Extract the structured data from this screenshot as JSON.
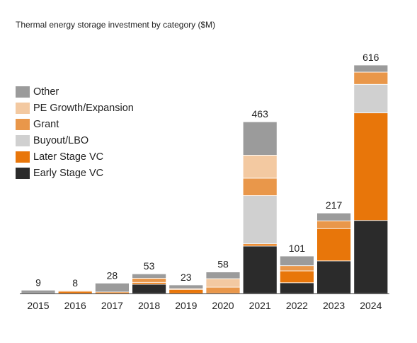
{
  "chart_data": {
    "type": "bar",
    "stacked": true,
    "title": "Thermal energy storage investment by category ($M)",
    "xlabel": "",
    "ylabel": "",
    "ylim": [
      0,
      616
    ],
    "grid": false,
    "legend_position": "left",
    "categories": [
      "2015",
      "2016",
      "2017",
      "2018",
      "2019",
      "2020",
      "2021",
      "2022",
      "2023",
      "2024"
    ],
    "totals": [
      9,
      8,
      28,
      53,
      23,
      58,
      463,
      101,
      217,
      616
    ],
    "series": [
      {
        "name": "Early Stage VC",
        "color": "#2b2b2b",
        "values": [
          0,
          0,
          0,
          25,
          0,
          0,
          128,
          29,
          88,
          197
        ]
      },
      {
        "name": "Later Stage VC",
        "color": "#e8760a",
        "values": [
          0,
          6,
          4,
          5,
          11,
          0,
          6,
          32,
          87,
          290
        ]
      },
      {
        "name": "Buyout/LBO",
        "color": "#d0d0d0",
        "values": [
          0,
          0,
          0,
          0,
          0,
          0,
          130,
          0,
          0,
          77
        ]
      },
      {
        "name": "Grant",
        "color": "#e9974a",
        "values": [
          0,
          2,
          0,
          11,
          2,
          17,
          47,
          14,
          21,
          33
        ]
      },
      {
        "name": "PE Growth/Expansion",
        "color": "#f3c9a1",
        "values": [
          0,
          0,
          0,
          0,
          0,
          23,
          62,
          0,
          0,
          0
        ]
      },
      {
        "name": "Other",
        "color": "#9b9b9b",
        "values": [
          9,
          0,
          24,
          12,
          10,
          18,
          90,
          26,
          21,
          19
        ]
      }
    ]
  },
  "legend_order": [
    "Other",
    "PE Growth/Expansion",
    "Grant",
    "Buyout/LBO",
    "Later Stage VC",
    "Early Stage VC"
  ]
}
